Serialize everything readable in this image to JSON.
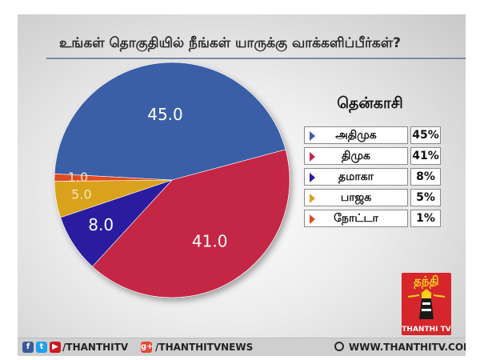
{
  "question": "உங்கள் தொகுதியில் நீங்கள் யாருக்கு வாக்களிப்பீர்கள்?",
  "constituency": "தென்காசி",
  "chart_data": {
    "type": "pie",
    "title": "உங்கள் தொகுதியில் நீங்கள் யாருக்கு வாக்களிப்பீர்கள்?",
    "slices": [
      {
        "label": "அதிமுக",
        "value": 45.0,
        "value_label": "45.0",
        "legend_value": "45%",
        "color": "#3b5fa6"
      },
      {
        "label": "திமுக",
        "value": 41.0,
        "value_label": "41.0",
        "legend_value": "41%",
        "color": "#c42745"
      },
      {
        "label": "தமாகா",
        "value": 8.0,
        "value_label": "8.0",
        "legend_value": "8%",
        "color": "#2a1a9e"
      },
      {
        "label": "பாஜக",
        "value": 5.0,
        "value_label": "5.0",
        "legend_value": "5%",
        "color": "#d9a21b"
      },
      {
        "label": "நோட்டா",
        "value": 1.0,
        "value_label": "1.0",
        "legend_value": "1%",
        "color": "#e24a24"
      }
    ],
    "legend_placement": "right"
  },
  "logo": {
    "text": "தந்தி",
    "caption": "THANTHI TV"
  },
  "footer": {
    "handle_social": "/THANTHITV",
    "handle_gplus": "/THANTHITVNEWS",
    "website": "WWW.THANTHITV.COM",
    "icons": [
      "facebook-icon",
      "twitter-icon",
      "youtube-icon",
      "google-plus-icon",
      "globe-icon"
    ]
  }
}
